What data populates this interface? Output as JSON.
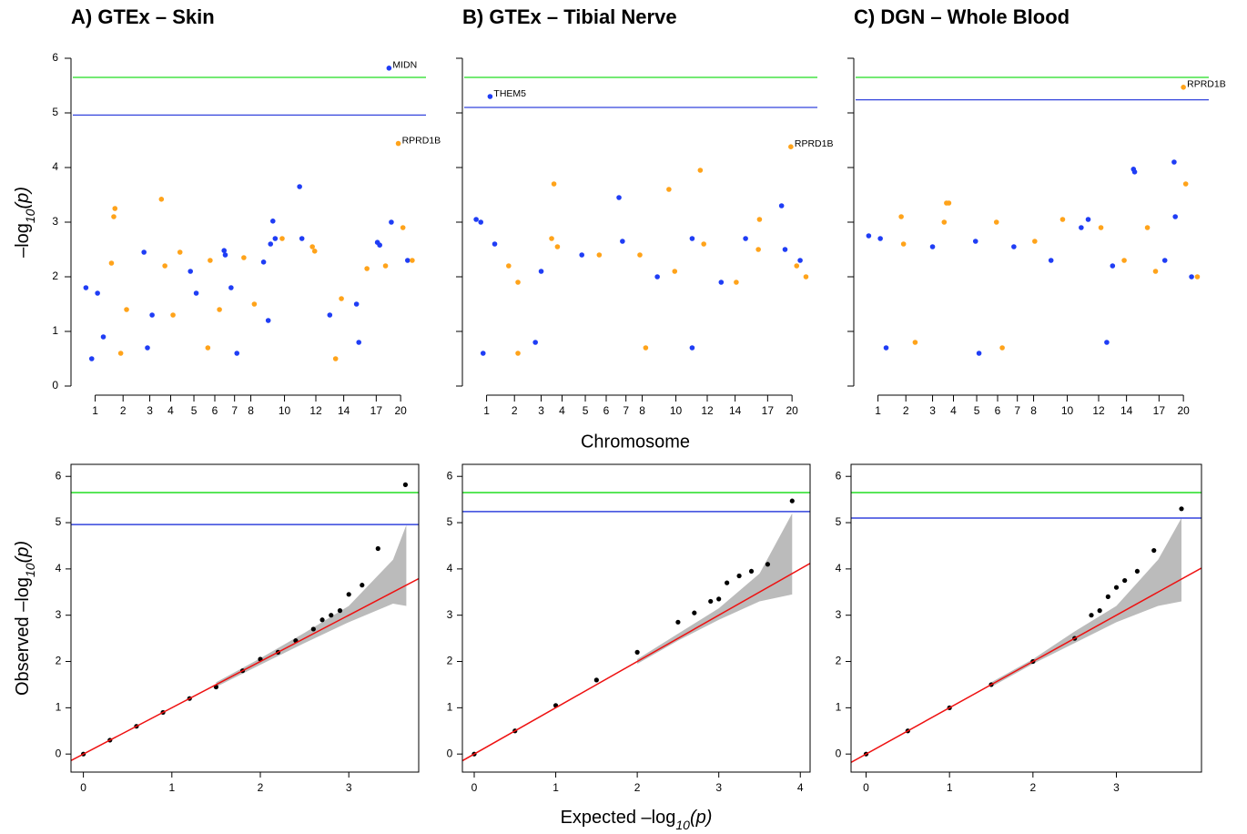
{
  "chart_data": [
    {
      "type": "manhattan",
      "title": "A) GTEx – Skin",
      "y_label": [
        "–log",
        "10",
        "(p)"
      ],
      "xlim": [
        0,
        2.9
      ],
      "ylim": [
        0,
        6
      ],
      "yticks": [
        0,
        1,
        2,
        3,
        4,
        5,
        6
      ],
      "show_ytick_labels": true,
      "xticks": [
        {
          "value": 0.13,
          "label": "1"
        },
        {
          "value": 0.37,
          "label": "2"
        },
        {
          "value": 0.6,
          "label": "3"
        },
        {
          "value": 0.78,
          "label": "4"
        },
        {
          "value": 0.98,
          "label": "5"
        },
        {
          "value": 1.16,
          "label": "6"
        },
        {
          "value": 1.33,
          "label": "7"
        },
        {
          "value": 1.47,
          "label": "8"
        },
        {
          "value": 1.76,
          "label": "10"
        },
        {
          "value": 2.03,
          "label": "12"
        },
        {
          "value": 2.27,
          "label": "14"
        },
        {
          "value": 2.55,
          "label": "17"
        },
        {
          "value": 2.76,
          "label": "20"
        }
      ],
      "hlines": [
        {
          "value": 5.65,
          "color": "#22dd22"
        },
        {
          "value": 4.96,
          "color": "#3344dd"
        }
      ],
      "series": [
        {
          "color": "#1f3df5",
          "x": [
            0.05,
            0.15,
            0.2,
            0.55,
            0.62,
            0.95,
            1.0,
            1.24,
            1.25,
            1.3,
            1.58,
            1.62,
            1.64,
            1.66,
            1.68,
            1.89,
            1.91,
            2.15,
            2.38,
            2.56,
            2.58,
            2.66,
            2.68,
            2.82,
            0.1,
            0.58,
            1.35,
            2.4
          ],
          "values": [
            1.8,
            1.7,
            0.9,
            2.45,
            1.3,
            2.1,
            1.7,
            2.48,
            2.4,
            1.8,
            2.27,
            1.2,
            2.6,
            3.02,
            2.7,
            3.65,
            2.7,
            1.3,
            1.5,
            2.63,
            2.58,
            5.82,
            3.0,
            2.3,
            0.5,
            0.7,
            0.6,
            0.8
          ]
        },
        {
          "color": "#ffa31a",
          "x": [
            0.27,
            0.29,
            0.3,
            0.4,
            0.7,
            0.73,
            0.8,
            0.86,
            1.12,
            1.2,
            1.41,
            1.5,
            1.74,
            2.0,
            2.02,
            2.25,
            2.47,
            2.63,
            2.74,
            2.78,
            2.86,
            0.35,
            1.1,
            2.2
          ],
          "values": [
            2.25,
            3.1,
            3.25,
            1.4,
            3.42,
            2.2,
            1.3,
            2.45,
            2.3,
            1.4,
            2.35,
            1.5,
            2.7,
            2.55,
            2.47,
            1.6,
            2.15,
            2.2,
            4.44,
            2.9,
            2.3,
            0.6,
            0.7,
            0.5
          ]
        }
      ],
      "annotations": [
        {
          "text": "MIDN",
          "x": 2.66,
          "y": 5.82
        },
        {
          "text": "RPRD1B",
          "x": 2.74,
          "y": 4.44
        }
      ]
    },
    {
      "type": "manhattan",
      "title": "B) GTEx – Tibial Nerve",
      "x_label": "Chromosome",
      "xlim": [
        0,
        2.9
      ],
      "ylim": [
        0,
        6
      ],
      "yticks": [
        0,
        1,
        2,
        3,
        4,
        5,
        6
      ],
      "show_ytick_labels": false,
      "xticks": [
        {
          "value": 0.13,
          "label": "1"
        },
        {
          "value": 0.37,
          "label": "2"
        },
        {
          "value": 0.6,
          "label": "3"
        },
        {
          "value": 0.78,
          "label": "4"
        },
        {
          "value": 0.98,
          "label": "5"
        },
        {
          "value": 1.16,
          "label": "6"
        },
        {
          "value": 1.33,
          "label": "7"
        },
        {
          "value": 1.47,
          "label": "8"
        },
        {
          "value": 1.76,
          "label": "10"
        },
        {
          "value": 2.03,
          "label": "12"
        },
        {
          "value": 2.27,
          "label": "14"
        },
        {
          "value": 2.55,
          "label": "17"
        },
        {
          "value": 2.76,
          "label": "20"
        }
      ],
      "hlines": [
        {
          "value": 5.65,
          "color": "#22dd22"
        },
        {
          "value": 5.1,
          "color": "#3344dd"
        }
      ],
      "series": [
        {
          "color": "#1f3df5",
          "x": [
            0.04,
            0.08,
            0.16,
            0.2,
            0.6,
            0.95,
            1.27,
            1.3,
            1.6,
            1.9,
            2.15,
            2.36,
            2.67,
            2.7,
            2.83,
            0.1,
            0.55,
            1.9
          ],
          "values": [
            3.05,
            3.0,
            5.3,
            2.6,
            2.1,
            2.4,
            3.45,
            2.65,
            2.0,
            2.7,
            1.9,
            2.7,
            3.3,
            2.5,
            2.3,
            0.6,
            0.8,
            0.7
          ]
        },
        {
          "color": "#ffa31a",
          "x": [
            0.32,
            0.4,
            0.69,
            0.71,
            0.74,
            1.1,
            1.45,
            1.7,
            1.75,
            1.97,
            2.0,
            2.28,
            2.47,
            2.48,
            2.75,
            2.8,
            2.88,
            0.4,
            1.5
          ],
          "values": [
            2.2,
            1.9,
            2.7,
            3.7,
            2.55,
            2.4,
            2.4,
            3.6,
            2.1,
            3.95,
            2.6,
            1.9,
            2.5,
            3.05,
            4.38,
            2.2,
            2.0,
            0.6,
            0.7
          ]
        }
      ],
      "annotations": [
        {
          "text": "THEM5",
          "x": 0.16,
          "y": 5.3
        },
        {
          "text": "RPRD1B",
          "x": 2.75,
          "y": 4.38
        }
      ]
    },
    {
      "type": "manhattan",
      "title": "C) DGN – Whole Blood",
      "xlim": [
        0,
        2.9
      ],
      "ylim": [
        0,
        6
      ],
      "yticks": [
        0,
        1,
        2,
        3,
        4,
        5,
        6
      ],
      "show_ytick_labels": false,
      "xticks": [
        {
          "value": 0.13,
          "label": "1"
        },
        {
          "value": 0.37,
          "label": "2"
        },
        {
          "value": 0.6,
          "label": "3"
        },
        {
          "value": 0.78,
          "label": "4"
        },
        {
          "value": 0.98,
          "label": "5"
        },
        {
          "value": 1.16,
          "label": "6"
        },
        {
          "value": 1.33,
          "label": "7"
        },
        {
          "value": 1.47,
          "label": "8"
        },
        {
          "value": 1.76,
          "label": "10"
        },
        {
          "value": 2.03,
          "label": "12"
        },
        {
          "value": 2.27,
          "label": "14"
        },
        {
          "value": 2.55,
          "label": "17"
        },
        {
          "value": 2.76,
          "label": "20"
        }
      ],
      "hlines": [
        {
          "value": 5.65,
          "color": "#22dd22"
        },
        {
          "value": 5.24,
          "color": "#3344dd"
        }
      ],
      "series": [
        {
          "color": "#1f3df5",
          "x": [
            0.05,
            0.15,
            0.6,
            0.97,
            1.3,
            1.62,
            1.88,
            1.94,
            2.15,
            2.33,
            2.34,
            2.6,
            2.68,
            2.69,
            2.83,
            0.2,
            1.0,
            2.1
          ],
          "values": [
            2.75,
            2.7,
            2.55,
            2.65,
            2.55,
            2.3,
            2.9,
            3.05,
            2.2,
            3.97,
            3.92,
            2.3,
            4.1,
            3.1,
            2.0,
            0.7,
            0.6,
            0.8
          ]
        },
        {
          "color": "#ffa31a",
          "x": [
            0.33,
            0.35,
            0.7,
            0.72,
            0.74,
            1.15,
            1.48,
            1.72,
            2.05,
            2.25,
            2.45,
            2.52,
            2.76,
            2.78,
            2.88,
            0.45,
            1.2
          ],
          "values": [
            3.1,
            2.6,
            3.0,
            3.35,
            3.35,
            3.0,
            2.65,
            3.05,
            2.9,
            2.3,
            2.9,
            2.1,
            5.47,
            3.7,
            2.0,
            0.8,
            0.7
          ]
        }
      ],
      "annotations": [
        {
          "text": "RPRD1B",
          "x": 2.76,
          "y": 5.47
        }
      ]
    },
    {
      "type": "qq",
      "y_label": [
        "Observed –log",
        "10",
        "(p)"
      ],
      "xlim": [
        -0.14,
        3.79
      ],
      "ylim": [
        -0.39,
        6.26
      ],
      "xticks": [
        0,
        1,
        2,
        3
      ],
      "yticks": [
        0,
        1,
        2,
        3,
        4,
        5,
        6
      ],
      "hlines": [
        {
          "value": 5.65,
          "color": "#22dd22"
        },
        {
          "value": 4.96,
          "color": "#3344dd"
        }
      ],
      "reference_line": {
        "slope": 1,
        "intercept": 0,
        "color": "#ee1111"
      },
      "band": {
        "color": "#bbbbbb",
        "x": [
          1.5,
          2.0,
          2.5,
          3.0,
          3.5,
          3.65
        ],
        "lower": [
          1.45,
          1.93,
          2.4,
          2.85,
          3.25,
          3.2
        ],
        "upper": [
          1.55,
          2.07,
          2.62,
          3.2,
          4.2,
          4.95
        ]
      },
      "points": {
        "color": "#000000",
        "x": [
          0,
          0.3,
          0.6,
          0.9,
          1.2,
          1.5,
          1.8,
          2.0,
          2.2,
          2.4,
          2.6,
          2.7,
          2.8,
          2.9,
          3.0,
          3.15,
          3.33,
          3.64
        ],
        "values": [
          0,
          0.3,
          0.6,
          0.9,
          1.2,
          1.45,
          1.8,
          2.05,
          2.2,
          2.45,
          2.7,
          2.9,
          3.0,
          3.1,
          3.45,
          3.65,
          4.44,
          5.82
        ]
      }
    },
    {
      "type": "qq",
      "x_label": [
        "Expected –log",
        "10",
        "(p)"
      ],
      "xlim": [
        -0.145,
        4.12
      ],
      "ylim": [
        -0.39,
        6.26
      ],
      "xticks": [
        0,
        1,
        2,
        3,
        4
      ],
      "yticks": [
        0,
        1,
        2,
        3,
        4,
        5,
        6
      ],
      "hlines": [
        {
          "value": 5.65,
          "color": "#22dd22"
        },
        {
          "value": 5.24,
          "color": "#3344dd"
        }
      ],
      "reference_line": {
        "slope": 1,
        "intercept": 0,
        "color": "#ee1111"
      },
      "band": {
        "color": "#bbbbbb",
        "x": [
          2.0,
          2.5,
          3.0,
          3.5,
          3.9
        ],
        "lower": [
          1.95,
          2.45,
          2.9,
          3.3,
          3.45
        ],
        "upper": [
          2.05,
          2.6,
          3.15,
          3.9,
          5.2
        ]
      },
      "points": {
        "color": "#000000",
        "x": [
          0,
          0.5,
          1.0,
          1.5,
          2.0,
          2.5,
          2.7,
          2.9,
          3.0,
          3.1,
          3.25,
          3.4,
          3.6,
          3.9
        ],
        "values": [
          0,
          0.5,
          1.05,
          1.6,
          2.2,
          2.85,
          3.05,
          3.3,
          3.35,
          3.7,
          3.85,
          3.95,
          4.1,
          5.47
        ]
      }
    },
    {
      "type": "qq",
      "xlim": [
        -0.18,
        4.02
      ],
      "ylim": [
        -0.39,
        6.26
      ],
      "xticks": [
        0,
        1,
        2,
        3
      ],
      "yticks": [
        0,
        1,
        2,
        3,
        4,
        5,
        6
      ],
      "hlines": [
        {
          "value": 5.65,
          "color": "#22dd22"
        },
        {
          "value": 5.1,
          "color": "#3344dd"
        }
      ],
      "reference_line": {
        "slope": 1,
        "intercept": 0,
        "color": "#ee1111"
      },
      "band": {
        "color": "#bbbbbb",
        "x": [
          1.5,
          2.0,
          2.5,
          3.0,
          3.5,
          3.78
        ],
        "lower": [
          1.45,
          1.95,
          2.4,
          2.85,
          3.2,
          3.3
        ],
        "upper": [
          1.55,
          2.05,
          2.65,
          3.2,
          4.2,
          5.1
        ]
      },
      "points": {
        "color": "#000000",
        "x": [
          0,
          0.5,
          1.0,
          1.5,
          2.0,
          2.5,
          2.7,
          2.8,
          2.9,
          3.0,
          3.1,
          3.25,
          3.45,
          3.78
        ],
        "values": [
          0,
          0.5,
          1.0,
          1.5,
          2.0,
          2.5,
          3.0,
          3.1,
          3.4,
          3.6,
          3.75,
          3.95,
          4.4,
          5.3
        ]
      }
    }
  ]
}
